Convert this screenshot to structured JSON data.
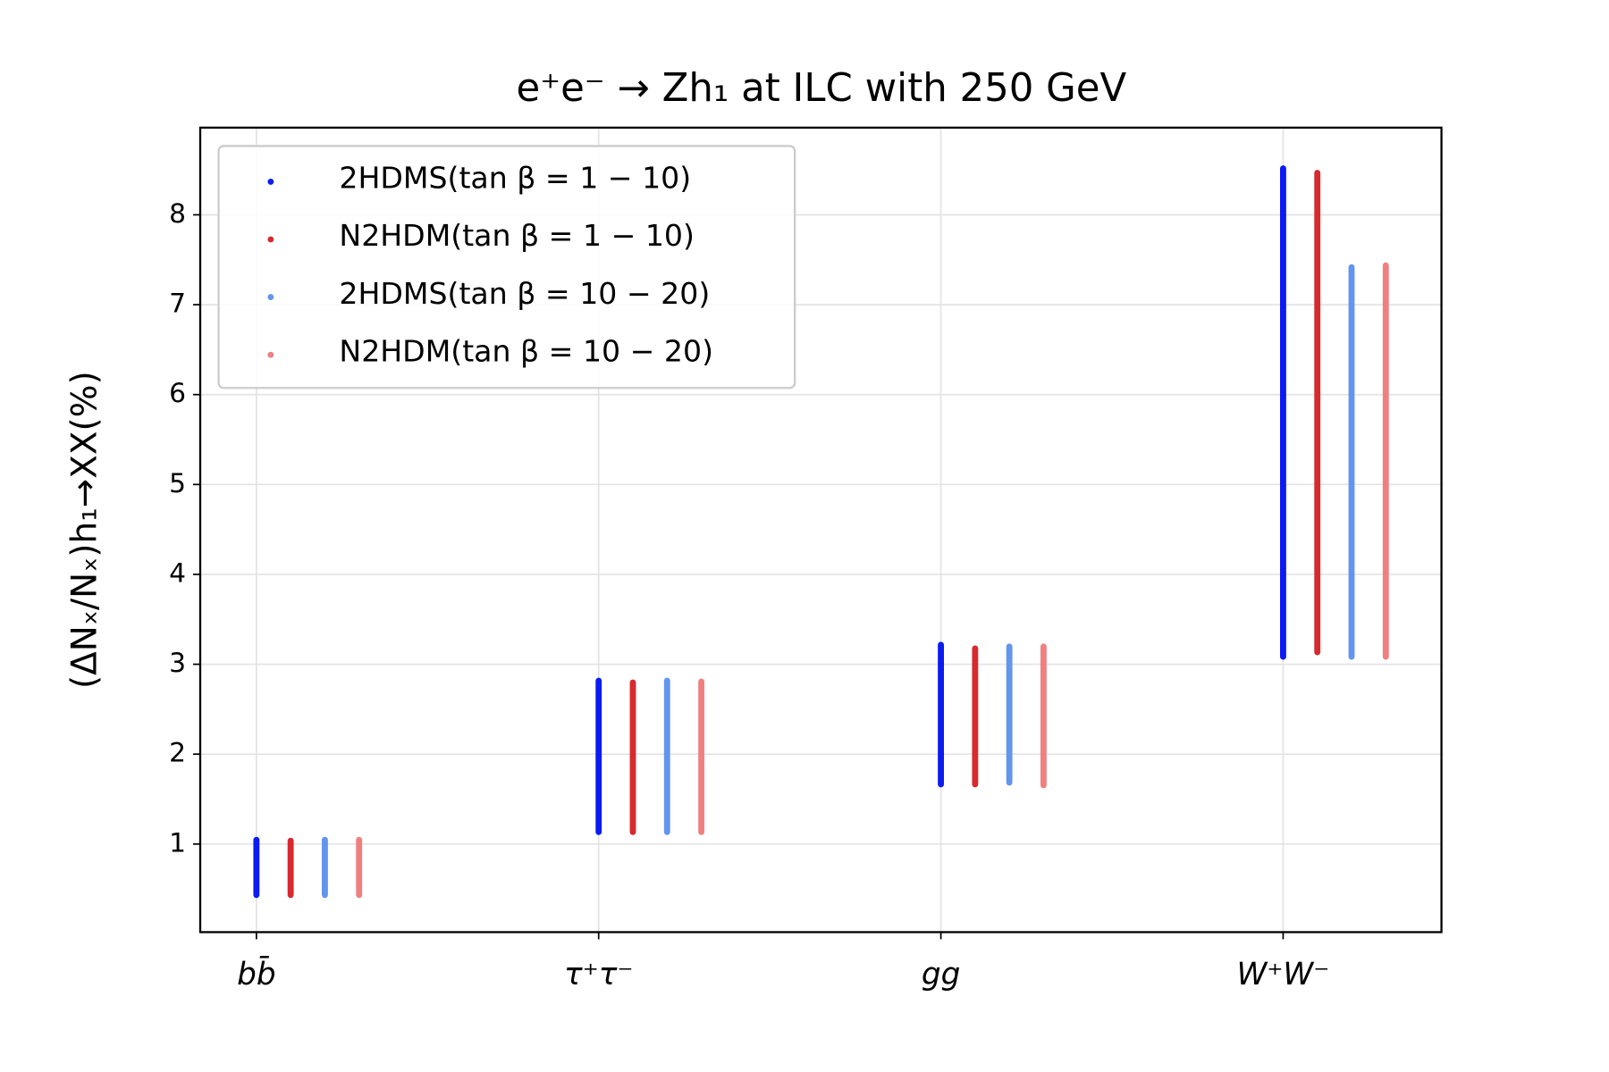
{
  "chart_data": {
    "type": "range",
    "title": "e⁺e⁻ → Zh₁ at ILC with 250 GeV",
    "y_label": "(ΔNₓ/Nₓ)h₁→XX(%)",
    "categories": [
      "bb̄",
      "τ⁺τ⁻",
      "gg",
      "W⁺W⁻"
    ],
    "series": [
      {
        "name": "2HDMS(tan β = 1 − 10)",
        "color": "#0b1cf0",
        "low": [
          0.4,
          1.1,
          1.63,
          3.05
        ],
        "high": [
          1.08,
          2.85,
          3.25,
          8.55
        ]
      },
      {
        "name": "N2HDM(tan β = 1 − 10)",
        "color": "#d62a2e",
        "low": [
          0.4,
          1.1,
          1.63,
          3.1
        ],
        "high": [
          1.07,
          2.83,
          3.21,
          8.5
        ]
      },
      {
        "name": "2HDMS(tan β = 10 − 20)",
        "color": "#6495ed",
        "low": [
          0.4,
          1.1,
          1.65,
          3.05
        ],
        "high": [
          1.08,
          2.85,
          3.23,
          7.45
        ]
      },
      {
        "name": "N2HDM(tan β = 10 − 20)",
        "color": "#f08080",
        "low": [
          0.4,
          1.1,
          1.62,
          3.05
        ],
        "high": [
          1.08,
          2.84,
          3.23,
          7.47
        ]
      }
    ],
    "ylim": [
      0.02,
      8.97
    ],
    "yticks": [
      1,
      2,
      3,
      4,
      5,
      6,
      7,
      8
    ],
    "grid": true,
    "legend": "upper left"
  }
}
